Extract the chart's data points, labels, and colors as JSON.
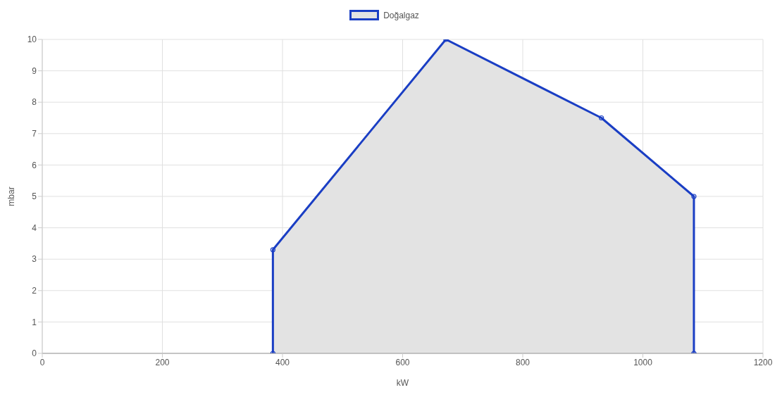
{
  "chart_data": {
    "type": "area",
    "xlabel": "kW",
    "ylabel": "mbar",
    "x": [
      384,
      384,
      672,
      931,
      1085,
      1085
    ],
    "series": [
      {
        "name": "Doğalgaz",
        "color": "#1a3ec4",
        "values": [
          0,
          3.3,
          10,
          7.5,
          5,
          0
        ]
      }
    ],
    "xlim": [
      0,
      1200
    ],
    "xticks": [
      0,
      200,
      400,
      600,
      800,
      1000,
      1200
    ],
    "ylim": [
      0,
      10
    ],
    "yticks": [
      0,
      1,
      2,
      3,
      4,
      5,
      6,
      7,
      8,
      9,
      10
    ],
    "grid": true,
    "legend": "top",
    "marker": "circle",
    "line_style": "solid"
  }
}
